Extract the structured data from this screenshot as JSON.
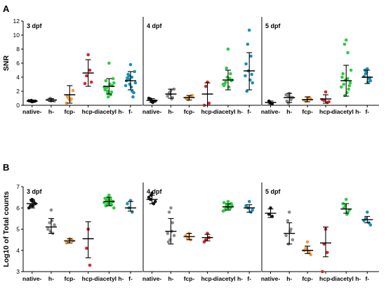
{
  "panels": [
    {
      "letter": "A",
      "ylabel": "SNR"
    },
    {
      "letter": "B",
      "ylabel": "Log10 of Total counts"
    }
  ],
  "palette": {
    "native-": "#1a1a1a",
    "h-": "#8c8c8c",
    "fcp-": "#f39c3a",
    "hcp-": "#d62728",
    "diacetyl h-": "#2ecc40",
    "f-": "#1f8fb4"
  },
  "chart_data": [
    {
      "type": "scatter",
      "panel": "A",
      "subplots": [
        "3 dpf",
        "4 dpf",
        "5 dpf"
      ],
      "categories": [
        "native-",
        "h-",
        "fcp-",
        "hcp-",
        "diacetyl h-",
        "f-"
      ],
      "ylabel": "SNR",
      "ylim": [
        0,
        12
      ],
      "yticks": [
        0,
        2,
        4,
        6,
        8,
        10,
        12
      ],
      "groups": [
        {
          "subplot": "3 dpf",
          "category": "native-",
          "mean": 0.6,
          "sd_low": 0.5,
          "sd_high": 0.7,
          "points": [
            0.5,
            0.6,
            0.55,
            0.65,
            0.6,
            0.7,
            0.6
          ]
        },
        {
          "subplot": "3 dpf",
          "category": "h-",
          "mean": 0.75,
          "sd_low": 0.55,
          "sd_high": 0.95,
          "points": [
            0.6,
            0.9,
            0.7,
            0.8,
            0.6,
            1.0,
            0.8
          ]
        },
        {
          "subplot": "3 dpf",
          "category": "fcp-",
          "mean": 1.5,
          "sd_low": 0.3,
          "sd_high": 2.8,
          "points": [
            0.8,
            1.1,
            0.9,
            0.3,
            2.1,
            1.0,
            0.7,
            1.3
          ]
        },
        {
          "subplot": "3 dpf",
          "category": "hcp-",
          "mean": 4.6,
          "sd_low": 2.7,
          "sd_high": 6.5,
          "points": [
            7.2,
            4.2,
            5.0,
            3.1,
            3.3
          ]
        },
        {
          "subplot": "3 dpf",
          "category": "diacetyl h-",
          "mean": 2.7,
          "sd_low": 1.6,
          "sd_high": 3.8,
          "points": [
            6.0,
            2.0,
            1.5,
            3.5,
            2.8,
            1.2,
            3.0,
            2.5,
            1.9,
            2.2,
            3.8,
            2.6,
            3.2,
            1.7
          ]
        },
        {
          "subplot": "3 dpf",
          "category": "f-",
          "mean": 3.5,
          "sd_low": 2.2,
          "sd_high": 4.8,
          "points": [
            5.8,
            4.2,
            2.0,
            3.9,
            1.8,
            3.0,
            2.6,
            4.4,
            1.2,
            3.5,
            4.8,
            2.8,
            3.2,
            3.7,
            4.0
          ]
        },
        {
          "subplot": "4 dpf",
          "category": "native-",
          "mean": 0.7,
          "sd_low": 0.45,
          "sd_high": 0.95,
          "points": [
            0.5,
            0.9,
            0.6,
            1.0,
            0.6,
            0.7,
            0.4
          ]
        },
        {
          "subplot": "4 dpf",
          "category": "h-",
          "mean": 1.6,
          "sd_low": 1.0,
          "sd_high": 2.3,
          "points": [
            2.1,
            1.8,
            1.1,
            1.3,
            2.3,
            1.6,
            0.9
          ]
        },
        {
          "subplot": "4 dpf",
          "category": "fcp-",
          "mean": 1.1,
          "sd_low": 0.75,
          "sd_high": 1.4,
          "points": [
            1.2,
            0.9,
            1.3,
            1.0,
            1.4,
            0.8
          ]
        },
        {
          "subplot": "4 dpf",
          "category": "hcp-",
          "mean": 1.6,
          "sd_low": 0.0,
          "sd_high": 3.2,
          "points": [
            3.3,
            2.7,
            0.3,
            0.0
          ]
        },
        {
          "subplot": "4 dpf",
          "category": "diacetyl h-",
          "mean": 3.6,
          "sd_low": 2.2,
          "sd_high": 5.0,
          "points": [
            8.0,
            5.3,
            3.8,
            3.1,
            3.5,
            4.0,
            2.6,
            3.3,
            4.5,
            2.8,
            3.6,
            3.0
          ]
        },
        {
          "subplot": "4 dpf",
          "category": "f-",
          "mean": 4.9,
          "sd_low": 2.2,
          "sd_high": 7.5,
          "points": [
            10.7,
            8.7,
            7.0,
            5.9,
            3.2,
            4.9,
            3.6,
            2.0,
            4.4,
            4.2
          ]
        },
        {
          "subplot": "5 dpf",
          "category": "native-",
          "mean": 0.4,
          "sd_low": 0.2,
          "sd_high": 0.6,
          "points": [
            0.3,
            0.6,
            0.2
          ]
        },
        {
          "subplot": "5 dpf",
          "category": "h-",
          "mean": 1.1,
          "sd_low": 0.4,
          "sd_high": 1.7,
          "points": [
            1.7,
            1.4,
            0.8,
            1.5,
            1.1,
            0.3,
            1.2,
            0.6
          ]
        },
        {
          "subplot": "5 dpf",
          "category": "fcp-",
          "mean": 0.8,
          "sd_low": 0.5,
          "sd_high": 1.2,
          "points": [
            1.0,
            0.6,
            1.1,
            0.7,
            0.9
          ]
        },
        {
          "subplot": "5 dpf",
          "category": "hcp-",
          "mean": 0.9,
          "sd_low": 0.3,
          "sd_high": 1.5,
          "points": [
            1.9,
            0.7,
            0.4,
            0.8,
            0.5
          ]
        },
        {
          "subplot": "5 dpf",
          "category": "diacetyl h-",
          "mean": 3.5,
          "sd_low": 1.3,
          "sd_high": 5.7,
          "points": [
            9.3,
            8.7,
            7.5,
            4.5,
            2.8,
            3.6,
            1.8,
            3.0,
            2.3,
            4.0,
            3.2,
            2.6,
            5.0,
            1.4,
            3.8
          ]
        },
        {
          "subplot": "5 dpf",
          "category": "f-",
          "mean": 4.0,
          "sd_low": 3.1,
          "sd_high": 5.0,
          "points": [
            5.2,
            4.5,
            3.8,
            4.1,
            3.5,
            4.7,
            3.3,
            5.0,
            3.9
          ]
        }
      ]
    },
    {
      "type": "scatter",
      "panel": "B",
      "subplots": [
        "3 dpf",
        "4 dpf",
        "5 dpf"
      ],
      "categories": [
        "native-",
        "h-",
        "fcp-",
        "hcp-",
        "diacetyl h-",
        "f-"
      ],
      "ylabel": "Log10 of Total counts",
      "ylim": [
        3,
        7
      ],
      "yticks": [
        3,
        4,
        5,
        6,
        7
      ],
      "groups": [
        {
          "subplot": "3 dpf",
          "category": "native-",
          "mean": 6.2,
          "sd_low": 6.0,
          "sd_high": 6.4,
          "points": [
            6.4,
            6.1,
            6.3,
            6.0,
            6.2,
            6.35,
            6.1
          ]
        },
        {
          "subplot": "3 dpf",
          "category": "h-",
          "mean": 5.1,
          "sd_low": 4.8,
          "sd_high": 5.5,
          "points": [
            5.9,
            5.3,
            4.8,
            5.0,
            5.2,
            4.9,
            5.4
          ]
        },
        {
          "subplot": "3 dpf",
          "category": "fcp-",
          "mean": 4.45,
          "sd_low": 4.35,
          "sd_high": 4.55,
          "points": [
            4.55,
            4.4,
            4.5,
            4.35,
            4.45
          ]
        },
        {
          "subplot": "3 dpf",
          "category": "hcp-",
          "mean": 4.55,
          "sd_low": 3.65,
          "sd_high": 5.35,
          "points": [
            5.0,
            4.1,
            3.3
          ]
        },
        {
          "subplot": "3 dpf",
          "category": "diacetyl h-",
          "mean": 6.3,
          "sd_low": 6.1,
          "sd_high": 6.5,
          "points": [
            6.6,
            6.2,
            6.4,
            6.1,
            6.3,
            6.5,
            6.2,
            6.35,
            6.15,
            6.45,
            6.3,
            6.25,
            6.0,
            6.4,
            6.3
          ]
        },
        {
          "subplot": "3 dpf",
          "category": "f-",
          "mean": 6.0,
          "sd_low": 5.85,
          "sd_high": 6.3,
          "points": [
            6.35,
            6.0,
            5.8,
            6.2
          ]
        },
        {
          "subplot": "4 dpf",
          "category": "native-",
          "mean": 6.4,
          "sd_low": 6.2,
          "sd_high": 6.6,
          "points": [
            6.7,
            6.4,
            6.2,
            6.5,
            6.3,
            6.6
          ]
        },
        {
          "subplot": "4 dpf",
          "category": "h-",
          "mean": 4.9,
          "sd_low": 4.3,
          "sd_high": 5.5,
          "points": [
            6.0,
            5.8,
            5.3,
            4.8,
            4.7,
            4.5,
            4.9,
            4.4
          ]
        },
        {
          "subplot": "4 dpf",
          "category": "fcp-",
          "mean": 4.65,
          "sd_low": 4.5,
          "sd_high": 4.8,
          "points": [
            4.8,
            4.6,
            4.5,
            4.7
          ]
        },
        {
          "subplot": "4 dpf",
          "category": "hcp-",
          "mean": 4.6,
          "sd_low": 4.45,
          "sd_high": 4.75,
          "points": [
            4.8,
            4.5,
            4.6,
            4.4
          ]
        },
        {
          "subplot": "4 dpf",
          "category": "diacetyl h-",
          "mean": 6.05,
          "sd_low": 5.9,
          "sd_high": 6.2,
          "points": [
            6.3,
            6.1,
            6.0,
            5.9,
            6.2,
            6.05,
            6.15,
            5.95,
            6.0,
            6.25,
            6.1,
            5.85
          ]
        },
        {
          "subplot": "4 dpf",
          "category": "f-",
          "mean": 6.0,
          "sd_low": 5.8,
          "sd_high": 6.15,
          "points": [
            6.3,
            6.0,
            5.8,
            6.1,
            5.9
          ]
        },
        {
          "subplot": "5 dpf",
          "category": "native-",
          "mean": 5.75,
          "sd_low": 5.55,
          "sd_high": 5.95,
          "points": [
            6.0,
            5.7,
            5.6
          ]
        },
        {
          "subplot": "5 dpf",
          "category": "h-",
          "mean": 4.8,
          "sd_low": 4.3,
          "sd_high": 5.3,
          "points": [
            5.8,
            5.4,
            5.0,
            4.7,
            4.5,
            4.3,
            4.9
          ]
        },
        {
          "subplot": "5 dpf",
          "category": "fcp-",
          "mean": 4.0,
          "sd_low": 3.85,
          "sd_high": 4.2,
          "points": [
            4.4,
            4.1,
            3.9,
            4.0,
            3.8
          ]
        },
        {
          "subplot": "5 dpf",
          "category": "hcp-",
          "mean": 4.35,
          "sd_low": 3.7,
          "sd_high": 5.1,
          "points": [
            5.0,
            4.3,
            3.9,
            3.0
          ]
        },
        {
          "subplot": "5 dpf",
          "category": "diacetyl h-",
          "mean": 5.95,
          "sd_low": 5.75,
          "sd_high": 6.2,
          "points": [
            6.4,
            6.0,
            5.8,
            6.2,
            5.9,
            6.1,
            5.7,
            6.0
          ]
        },
        {
          "subplot": "5 dpf",
          "category": "f-",
          "mean": 5.45,
          "sd_low": 5.3,
          "sd_high": 5.6,
          "points": [
            5.8,
            5.5,
            5.3,
            5.4,
            5.2
          ]
        }
      ]
    }
  ]
}
